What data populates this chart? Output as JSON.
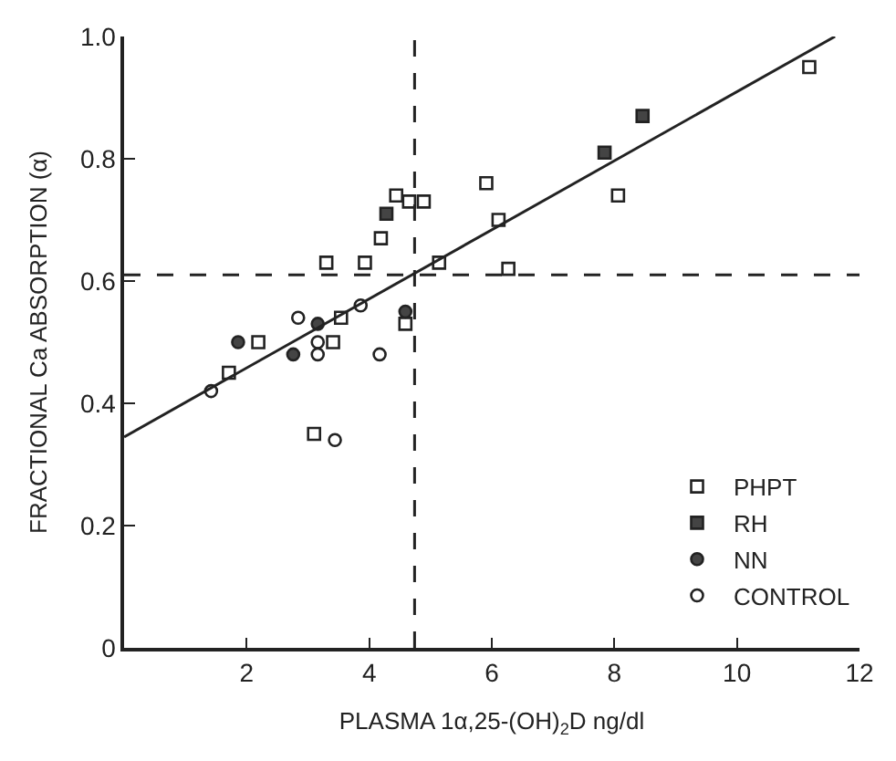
{
  "chart_data": {
    "type": "scatter",
    "xlabel": "PLASMA 1α,25-(OH)$_{2}$D ng/dl",
    "ylabel": "FRACTIONAL Ca ABSORPTION (α)",
    "xlim": [
      0,
      12
    ],
    "xticks": [
      2,
      4,
      6,
      8,
      10,
      12
    ],
    "ylim": [
      0,
      1.0
    ],
    "yticks": [
      0,
      0.2,
      0.4,
      0.6,
      0.8,
      {
        "value": 1.0,
        "label": "1.0"
      }
    ],
    "grid": false,
    "legend": "bottom right",
    "series": [
      {
        "name": "PHPT",
        "color": "#ffffff",
        "marker": "square",
        "x": [
          1.71,
          2.19,
          3.41,
          3.1,
          3.3,
          3.54,
          3.93,
          4.19,
          4.44,
          4.65,
          4.89,
          4.59,
          5.14,
          5.91,
          6.11,
          6.27,
          8.06,
          11.18
        ],
        "values": [
          0.45,
          0.5,
          0.5,
          0.35,
          0.63,
          0.54,
          0.63,
          0.67,
          0.74,
          0.73,
          0.73,
          0.53,
          0.63,
          0.76,
          0.7,
          0.62,
          0.74,
          0.95
        ]
      },
      {
        "name": "RH",
        "color": "#444444",
        "marker": "square",
        "x": [
          4.28,
          7.84,
          8.46
        ],
        "values": [
          0.71,
          0.81,
          0.87
        ]
      },
      {
        "name": "NN",
        "color": "#444444",
        "marker": "circle",
        "x": [
          1.86,
          2.76,
          3.16,
          4.59
        ],
        "values": [
          0.5,
          0.48,
          0.53,
          0.55
        ]
      },
      {
        "name": "CONTROL",
        "color": "#ffffff",
        "marker": "circle",
        "x": [
          1.42,
          2.84,
          3.16,
          3.16,
          3.44,
          3.86,
          4.17
        ],
        "values": [
          0.42,
          0.54,
          0.5,
          0.48,
          0.34,
          0.56,
          0.48
        ]
      },
      {
        "type": "line",
        "color": "#222222",
        "marker": "none",
        "line_style": "solid",
        "x": [
          0,
          11.6
        ],
        "values": [
          0.345,
          1.0
        ]
      }
    ],
    "ref_lines": [
      {
        "axis": "x",
        "value": 4.74,
        "color": "#222222",
        "line_style": "dashed"
      },
      {
        "axis": "y",
        "value": 0.61,
        "color": "#222222",
        "line_style": "dashed"
      }
    ]
  }
}
